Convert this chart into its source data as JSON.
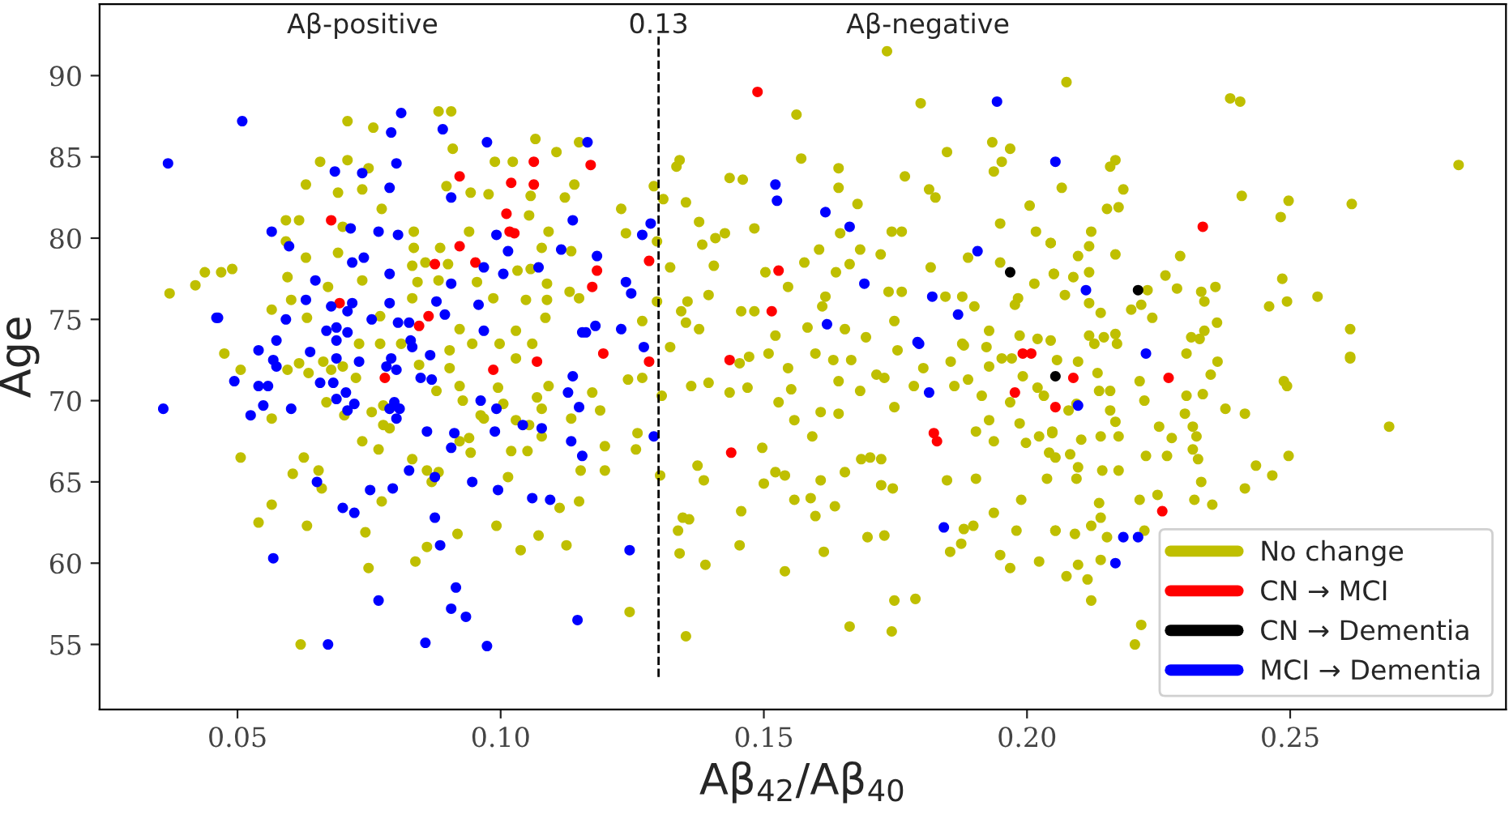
{
  "chart_data": {
    "type": "scatter",
    "xlabel": "Aβ$_{42}$/Aβ$_{40}$",
    "ylabel": "Age",
    "xlim": [
      0.0238,
      0.291
    ],
    "ylim": [
      51.0,
      94.4
    ],
    "xticks": [
      {
        "value": 0.05,
        "label": "0.05"
      },
      {
        "value": 0.1,
        "label": "0.10"
      },
      {
        "value": 0.15,
        "label": "0.15"
      },
      {
        "value": 0.2,
        "label": "0.20"
      },
      {
        "value": 0.25,
        "label": "0.25"
      }
    ],
    "yticks": [
      55,
      60,
      65,
      70,
      75,
      80,
      85,
      90
    ],
    "grid": false,
    "legend": "bottom right",
    "marker": "circle",
    "ref_lines": [
      {
        "axis": "x",
        "value": 0.13,
        "label": "0.13",
        "color": "#000000",
        "line_style": "dashed"
      }
    ],
    "annotations": [
      "Aβ-positive",
      "Aβ-negative"
    ],
    "series": [
      {
        "name": "No change",
        "color": "#bfbf00",
        "x": [
          0.0882,
          0.0906,
          0.0709,
          0.0758,
          0.0909,
          0.1066,
          0.1149,
          0.0657,
          0.0709,
          0.0749,
          0.0989,
          0.1023,
          0.1106,
          0.063,
          0.0691,
          0.0737,
          0.0897,
          0.0943,
          0.0977,
          0.1057,
          0.1122,
          0.114,
          0.0774,
          0.0592,
          0.0617,
          0.07,
          0.0835,
          0.094,
          0.1091,
          0.1054,
          0.0592,
          0.0691,
          0.0835,
          0.0885,
          0.1078,
          0.1134,
          0.063,
          0.0832,
          0.0857,
          0.09,
          0.1032,
          0.1057,
          0.0371,
          0.042,
          0.0438,
          0.0469,
          0.049,
          0.0595,
          0.0672,
          0.0737,
          0.0842,
          0.0882,
          0.0955,
          0.1088,
          0.1131,
          0.0565,
          0.0602,
          0.0832,
          0.0986,
          0.1048,
          0.1088,
          0.1149,
          0.0632,
          0.0771,
          0.0922,
          0.1029,
          0.1085,
          0.0475,
          0.0731,
          0.0771,
          0.0811,
          0.0946,
          0.0998,
          0.106,
          0.0506,
          0.0595,
          0.0617,
          0.0635,
          0.0663,
          0.0678,
          0.07,
          0.0725,
          0.0669,
          0.0703,
          0.0565,
          0.0755,
          0.0777,
          0.0777,
          0.0789,
          0.0737,
          0.0768,
          0.0506,
          0.0626,
          0.0654,
          0.0605,
          0.066,
          0.0832,
          0.086,
          0.0882,
          0.0869,
          0.0845,
          0.0878,
          0.0903,
          0.0903,
          0.0922,
          0.0928,
          0.0922,
          0.094,
          0.0943,
          0.0962,
          0.0968,
          0.0995,
          0.1029,
          0.1005,
          0.1029,
          0.1054,
          0.1069,
          0.1091,
          0.1078,
          0.1078,
          0.102,
          0.1051,
          0.1014,
          0.1134,
          0.1152,
          0.1149,
          0.1112,
          0.1125,
          0.1072,
          0.1038,
          0.0992,
          0.0918,
          0.086,
          0.0838,
          0.0743,
          0.0774,
          0.0632,
          0.054,
          0.0565,
          0.0749,
          0.062,
          0.1734,
          0.1798,
          0.1562,
          0.1848,
          0.1934,
          0.1968,
          0.1952,
          0.1937,
          0.1571,
          0.1642,
          0.134,
          0.1334,
          0.1435,
          0.146,
          0.1291,
          0.1309,
          0.1352,
          0.1642,
          0.1678,
          0.1768,
          0.1814,
          0.1826,
          0.2005,
          0.1229,
          0.1377,
          0.1482,
          0.1426,
          0.1408,
          0.1383,
          0.1645,
          0.1743,
          0.1762,
          0.2017,
          0.1949,
          0.2045,
          0.1238,
          0.1297,
          0.1605,
          0.1683,
          0.1722,
          0.1577,
          0.1663,
          0.1322,
          0.1405,
          0.1817,
          0.1888,
          0.1949,
          0.1503,
          0.1546,
          0.1637,
          0.2014,
          0.2051,
          0.1395,
          0.1355,
          0.1617,
          0.1737,
          0.1762,
          0.1845,
          0.1877,
          0.1983,
          0.1297,
          0.1457,
          0.1482,
          0.1611,
          0.1343,
          0.19,
          0.1977,
          0.1269,
          0.1352,
          0.1377,
          0.1583,
          0.1654,
          0.1748,
          0.1928,
          0.1986,
          0.202,
          0.1322,
          0.1522,
          0.1694,
          0.1877,
          0.1923,
          0.1435,
          0.1454,
          0.1472,
          0.1509,
          0.1362,
          0.1395,
          0.1469,
          0.1528,
          0.1558,
          0.1497,
          0.1592,
          0.1608,
          0.1642,
          0.1546,
          0.1552,
          0.1598,
          0.1632,
          0.1642,
          0.1666,
          0.1683,
          0.1714,
          0.1729,
          0.1754,
          0.1748,
          0.1785,
          0.1803,
          0.1855,
          0.188,
          0.1862,
          0.1888,
          0.1914,
          0.1928,
          0.1952,
          0.1971,
          0.1992,
          0.1968,
          0.202,
          0.2032,
          0.1928,
          0.1986,
          0.1903,
          0.1937,
          0.1998,
          0.2023,
          0.2048,
          0.2042,
          0.1685,
          0.1702,
          0.1723,
          0.1654,
          0.1608,
          0.1723,
          0.1745,
          0.1589,
          0.1558,
          0.1635,
          0.1598,
          0.15,
          0.1522,
          0.154,
          0.1374,
          0.1386,
          0.1457,
          0.1454,
          0.1346,
          0.1358,
          0.1337,
          0.134,
          0.1389,
          0.1614,
          0.154,
          0.1697,
          0.1729,
          0.1848,
          0.1903,
          0.1937,
          0.1989,
          0.188,
          0.1898,
          0.198,
          0.2054,
          0.1875,
          0.1854,
          0.1949,
          0.1968,
          0.2023,
          0.1748,
          0.1788,
          0.1663,
          0.1743,
          0.1352,
          0.1245,
          0.1306,
          0.1303,
          0.126,
          0.1257,
          0.1198,
          0.1198,
          0.1242,
          0.1269,
          0.1189,
          0.1174,
          0.2075,
          0.2386,
          0.2405,
          0.282,
          0.2158,
          0.2168,
          0.2066,
          0.2183,
          0.2152,
          0.2174,
          0.2408,
          0.2497,
          0.2482,
          0.2617,
          0.2122,
          0.2045,
          0.2118,
          0.2097,
          0.2168,
          0.2291,
          0.2051,
          0.2088,
          0.2118,
          0.2263,
          0.2285,
          0.2331,
          0.2358,
          0.2485,
          0.2552,
          0.2072,
          0.2118,
          0.2229,
          0.2217,
          0.2198,
          0.2337,
          0.246,
          0.2494,
          0.214,
          0.2238,
          0.2361,
          0.2614,
          0.2045,
          0.2118,
          0.2146,
          0.2168,
          0.2128,
          0.2171,
          0.2312,
          0.2328,
          0.2337,
          0.2303,
          0.2614,
          0.2614,
          0.2488,
          0.2494,
          0.2688,
          0.2497,
          0.2414,
          0.2435,
          0.2466,
          0.2377,
          0.2414,
          0.2331,
          0.2352,
          0.2318,
          0.2303,
          0.2334,
          0.23,
          0.2315,
          0.2322,
          0.2315,
          0.2325,
          0.2362,
          0.2349,
          0.2275,
          0.2266,
          0.2223,
          0.2214,
          0.2251,
          0.2226,
          0.2248,
          0.2214,
          0.2223,
          0.2174,
          0.2143,
          0.2097,
          0.2094,
          0.2054,
          0.2038,
          0.2082,
          0.2103,
          0.214,
          0.2174,
          0.2168,
          0.2137,
          0.2158,
          0.2158,
          0.2048,
          0.2094,
          0.2079,
          0.2057,
          0.2097,
          0.2134,
          0.2137,
          0.214,
          0.2122,
          0.2054,
          0.2091,
          0.2152,
          0.214,
          0.2097,
          0.2075,
          0.2115,
          0.2122,
          0.2217,
          0.2205
        ],
        "values": [
          87.8,
          87.8,
          87.2,
          86.8,
          85.5,
          86.1,
          85.9,
          84.7,
          84.8,
          84.3,
          84.7,
          84.7,
          85.3,
          83.3,
          82.8,
          83.0,
          83.2,
          82.8,
          82.7,
          82.6,
          82.5,
          83.3,
          81.8,
          81.1,
          81.1,
          80.7,
          80.4,
          80.4,
          80.4,
          81.4,
          79.8,
          79.1,
          79.4,
          79.4,
          79.4,
          79.2,
          78.8,
          78.3,
          78.5,
          78.4,
          78.0,
          78.1,
          76.6,
          77.1,
          77.9,
          77.9,
          78.1,
          77.6,
          77.0,
          77.4,
          77.3,
          77.4,
          77.3,
          77.2,
          76.7,
          75.6,
          76.2,
          76.3,
          76.3,
          76.2,
          76.2,
          76.3,
          75.1,
          75.2,
          74.4,
          74.3,
          75.1,
          72.9,
          73.5,
          73.5,
          73.5,
          73.5,
          73.5,
          73.5,
          71.9,
          71.9,
          72.3,
          71.7,
          72.4,
          71.9,
          72.1,
          71.4,
          69.9,
          69.1,
          68.9,
          69.3,
          69.7,
          68.5,
          68.3,
          67.5,
          67.0,
          66.5,
          66.5,
          65.7,
          65.5,
          64.6,
          66.4,
          65.7,
          65.6,
          65.0,
          72.2,
          70.6,
          73.1,
          72.0,
          70.9,
          70.0,
          67.5,
          67.7,
          66.8,
          69.1,
          68.9,
          70.8,
          72.6,
          69.8,
          68.8,
          68.5,
          70.2,
          70.9,
          69.5,
          67.8,
          66.9,
          66.9,
          65.3,
          68.9,
          65.7,
          63.8,
          63.4,
          61.1,
          61.7,
          60.8,
          62.3,
          61.8,
          61.0,
          60.1,
          61.9,
          63.8,
          62.3,
          62.5,
          63.6,
          59.7,
          55.0,
          91.5,
          88.3,
          87.6,
          85.3,
          85.9,
          85.5,
          84.7,
          84.1,
          84.9,
          84.3,
          84.8,
          84.4,
          83.7,
          83.6,
          83.2,
          82.4,
          82.2,
          83.1,
          82.1,
          83.8,
          83.0,
          82.5,
          82.0,
          81.8,
          81.0,
          80.6,
          80.3,
          80.0,
          79.6,
          80.3,
          80.4,
          80.4,
          80.4,
          80.9,
          79.7,
          80.3,
          79.8,
          79.3,
          79.3,
          79.0,
          78.5,
          78.4,
          78.2,
          78.3,
          78.2,
          78.8,
          78.5,
          77.9,
          77.0,
          77.9,
          77.2,
          77.8,
          76.5,
          76.1,
          76.4,
          76.7,
          76.7,
          76.4,
          76.4,
          76.3,
          76.1,
          75.5,
          75.5,
          75.8,
          75.5,
          75.8,
          75.9,
          74.9,
          74.8,
          74.4,
          74.5,
          74.4,
          74.9,
          74.3,
          74.0,
          73.8,
          73.3,
          74.0,
          73.9,
          73.5,
          73.3,
          70.5,
          72.3,
          72.7,
          72.9,
          70.9,
          71.1,
          70.8,
          69.9,
          68.8,
          67.1,
          67.8,
          69.3,
          69.2,
          72.0,
          70.7,
          72.9,
          72.5,
          71.2,
          72.5,
          70.6,
          71.6,
          71.4,
          73.1,
          69.6,
          70.9,
          72.0,
          72.4,
          73.4,
          70.9,
          71.3,
          70.3,
          72.1,
          72.6,
          72.6,
          71.5,
          69.9,
          70.8,
          70.3,
          68.8,
          68.6,
          68.1,
          67.5,
          67.4,
          67.8,
          68.0,
          66.8,
          66.4,
          66.5,
          66.4,
          65.6,
          65.1,
          64.8,
          64.6,
          64.0,
          63.9,
          63.5,
          62.9,
          64.9,
          65.6,
          65.4,
          66.0,
          65.1,
          63.2,
          61.1,
          62.8,
          62.7,
          62.0,
          60.6,
          59.9,
          60.7,
          59.5,
          61.6,
          61.7,
          65.1,
          65.2,
          63.1,
          63.9,
          62.1,
          62.3,
          62.0,
          62.0,
          61.2,
          60.7,
          60.5,
          59.7,
          60.1,
          57.7,
          57.8,
          56.1,
          55.8,
          55.5,
          57.0,
          70.3,
          65.4,
          68.0,
          67.0,
          67.2,
          65.7,
          71.3,
          71.4,
          69.4,
          70.5,
          89.6,
          88.6,
          88.4,
          84.5,
          84.4,
          84.8,
          83.1,
          83.0,
          81.8,
          81.9,
          82.6,
          82.3,
          81.3,
          82.1,
          80.4,
          79.7,
          79.5,
          78.9,
          79.0,
          78.9,
          77.8,
          77.6,
          77.9,
          77.7,
          76.9,
          76.7,
          77.0,
          77.5,
          76.4,
          76.5,
          76.0,
          76.8,
          75.9,
          75.6,
          76.1,
          75.8,
          76.1,
          75.4,
          75.1,
          74.8,
          74.4,
          73.7,
          74.0,
          73.9,
          74.1,
          73.5,
          73.5,
          73.9,
          73.8,
          74.3,
          72.9,
          72.7,
          72.6,
          71.2,
          70.9,
          68.4,
          66.6,
          64.6,
          66.0,
          65.4,
          69.5,
          69.2,
          65.0,
          63.6,
          63.9,
          70.3,
          70.4,
          69.2,
          68.4,
          67.8,
          67.0,
          66.4,
          72.4,
          71.6,
          67.7,
          66.6,
          70.0,
          71.2,
          68.4,
          66.6,
          64.2,
          63.9,
          62.0,
          65.7,
          65.7,
          65.9,
          65.2,
          66.5,
          65.2,
          66.7,
          67.6,
          67.8,
          67.8,
          68.7,
          70.6,
          70.6,
          69.4,
          68.1,
          69.8,
          69.4,
          72.5,
          72.4,
          71.7,
          63.7,
          62.8,
          62.3,
          62.0,
          61.8,
          61.6,
          60.2,
          59.9,
          59.2,
          59.0,
          57.7,
          56.2,
          55.0
        ]
      },
      {
        "name": "CN → MCI",
        "color": "#ff0000",
        "x": [
          0.0678,
          0.0922,
          0.1063,
          0.102,
          0.1063,
          0.1011,
          0.1017,
          0.1026,
          0.0922,
          0.0875,
          0.0952,
          0.0694,
          0.0863,
          0.0845,
          0.078,
          0.0986,
          0.1069,
          0.1171,
          0.1488,
          0.1282,
          0.1183,
          0.1174,
          0.1528,
          0.1515,
          0.1992,
          0.1195,
          0.1282,
          0.1435,
          0.1438,
          0.2008,
          0.1977,
          0.2054,
          0.1823,
          0.1829,
          0.2334,
          0.2088,
          0.2269,
          0.2257
        ],
        "values": [
          81.1,
          83.8,
          84.7,
          83.4,
          83.3,
          81.5,
          80.4,
          80.3,
          79.5,
          78.4,
          78.5,
          76.0,
          75.2,
          74.6,
          71.4,
          71.9,
          72.4,
          84.5,
          89.0,
          78.6,
          78.0,
          77.0,
          78.0,
          75.5,
          72.9,
          72.9,
          72.4,
          72.5,
          66.8,
          72.9,
          70.5,
          69.6,
          68.0,
          67.5,
          80.7,
          71.4,
          71.4,
          63.2
        ]
      },
      {
        "name": "CN → Dementia",
        "color": "#000000",
        "x": [
          0.1968,
          0.2211,
          0.2054
        ],
        "values": [
          77.9,
          76.8,
          71.5
        ]
      },
      {
        "name": "MCI → Dementia",
        "color": "#0000ff",
        "x": [
          0.0368,
          0.0509,
          0.0359,
          0.046,
          0.0494,
          0.0811,
          0.0792,
          0.089,
          0.0974,
          0.0685,
          0.0737,
          0.0802,
          0.0789,
          0.0906,
          0.1137,
          0.0565,
          0.0598,
          0.0715,
          0.0768,
          0.0805,
          0.0992,
          0.1115,
          0.1014,
          0.0718,
          0.074,
          0.0789,
          0.0968,
          0.1005,
          0.1072,
          0.0906,
          0.0648,
          0.063,
          0.0718,
          0.0678,
          0.0709,
          0.0789,
          0.0878,
          0.0958,
          0.0463,
          0.0592,
          0.0669,
          0.0688,
          0.0709,
          0.0755,
          0.0805,
          0.0826,
          0.0894,
          0.054,
          0.0574,
          0.0638,
          0.0688,
          0.0829,
          0.0968,
          0.1155,
          0.0568,
          0.0574,
          0.0688,
          0.0731,
          0.0783,
          0.0802,
          0.0792,
          0.0832,
          0.0866,
          0.054,
          0.0558,
          0.0657,
          0.0682,
          0.0706,
          0.0688,
          0.0722,
          0.0709,
          0.0789,
          0.0798,
          0.0808,
          0.0802,
          0.0848,
          0.0869,
          0.0549,
          0.0525,
          0.0602,
          0.086,
          0.0912,
          0.0906,
          0.0962,
          0.0992,
          0.0989,
          0.1042,
          0.1078,
          0.1137,
          0.1128,
          0.1149,
          0.1134,
          0.1155,
          0.0826,
          0.0875,
          0.0651,
          0.0752,
          0.0795,
          0.0946,
          0.0995,
          0.106,
          0.1094,
          0.07,
          0.0722,
          0.0875,
          0.0885,
          0.0568,
          0.0915,
          0.0768,
          0.0906,
          0.0934,
          0.1146,
          0.0672,
          0.0857,
          0.0974,
          0.1165,
          0.1269,
          0.1285,
          0.1183,
          0.1238,
          0.1248,
          0.1162,
          0.118,
          0.1229,
          0.1272,
          0.1522,
          0.1525,
          0.1617,
          0.1663,
          0.1691,
          0.162,
          0.1943,
          0.1906,
          0.182,
          0.1869,
          0.1792,
          0.2054,
          0.1291,
          0.1245,
          0.1795,
          0.1814,
          0.1842,
          0.2112,
          0.2226,
          0.2097,
          0.2183,
          0.2211,
          0.2168
        ],
        "values": [
          84.6,
          87.2,
          69.5,
          75.1,
          71.2,
          87.7,
          86.5,
          86.7,
          85.9,
          84.1,
          84.0,
          84.6,
          83.1,
          82.5,
          81.1,
          80.4,
          79.5,
          80.6,
          80.4,
          80.2,
          80.2,
          79.3,
          79.2,
          78.5,
          78.8,
          77.8,
          78.2,
          77.8,
          78.2,
          77.2,
          77.4,
          76.2,
          76.0,
          75.8,
          75.5,
          76.0,
          76.1,
          75.9,
          75.1,
          75.0,
          74.3,
          74.5,
          74.2,
          75.0,
          74.8,
          74.8,
          75.3,
          73.1,
          73.7,
          73.0,
          73.7,
          73.7,
          74.3,
          74.2,
          72.5,
          72.1,
          72.6,
          72.4,
          72.1,
          71.9,
          72.6,
          73.3,
          72.8,
          70.9,
          70.9,
          71.1,
          71.1,
          70.5,
          70.1,
          69.8,
          69.4,
          69.5,
          69.9,
          69.5,
          68.9,
          71.4,
          71.3,
          69.7,
          69.1,
          69.5,
          68.1,
          68.0,
          67.1,
          70.0,
          69.5,
          68.1,
          68.5,
          68.3,
          71.5,
          70.5,
          69.6,
          67.5,
          66.6,
          65.7,
          65.3,
          65.0,
          64.5,
          64.6,
          65.0,
          64.5,
          64.0,
          63.9,
          63.4,
          63.1,
          62.8,
          61.1,
          60.3,
          58.5,
          57.7,
          57.2,
          56.7,
          56.5,
          55.0,
          55.1,
          54.9,
          85.9,
          80.2,
          80.9,
          78.9,
          77.3,
          76.6,
          74.2,
          74.6,
          74.4,
          73.3,
          83.3,
          82.3,
          81.6,
          80.7,
          77.2,
          74.7,
          88.4,
          79.2,
          76.4,
          75.3,
          73.6,
          84.7,
          67.8,
          60.8,
          73.5,
          70.5,
          62.2,
          76.8,
          72.9,
          69.7,
          61.6,
          61.6,
          60.0
        ]
      }
    ]
  }
}
